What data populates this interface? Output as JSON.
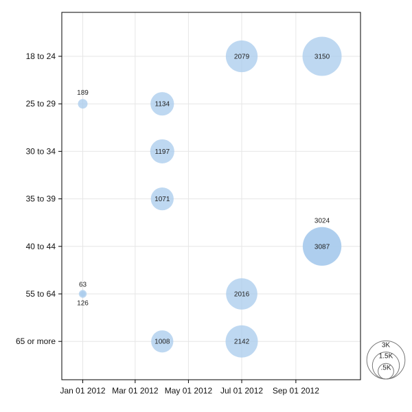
{
  "chart_data": {
    "type": "bubble",
    "title": "",
    "xlabel": "",
    "ylabel": "",
    "x_ticks": [
      "2012-01-01",
      "2012-03-01",
      "2012-05-01",
      "2012-07-01",
      "2012-09-01"
    ],
    "x_tick_labels": [
      "Jan 01 2012",
      "Mar 01 2012",
      "May 01 2012",
      "Jul 01 2012",
      "Sep 01 2012"
    ],
    "xlim": [
      "2011-12-08",
      "2012-11-14"
    ],
    "categories": [
      "18 to 24",
      "25 to 29",
      "30 to 34",
      "35 to 39",
      "40 to 44",
      "55 to 64",
      "65 or more"
    ],
    "grid": true,
    "legend": {
      "position": "bottom-right",
      "labels": [
        "3K",
        "1.5K",
        ".5K"
      ],
      "values": [
        3000,
        1500,
        500
      ]
    },
    "colors": {
      "bubble": "#a8cbec",
      "bubble_overlap": "#87b6e1",
      "grid": "#e6e6e6",
      "axis": "#000000"
    },
    "series": [
      {
        "points": [
          {
            "x": "2012-01-01",
            "category": "25 to 29",
            "value": 189
          },
          {
            "x": "2012-04-01",
            "category": "25 to 29",
            "value": 1134
          },
          {
            "x": "2012-04-01",
            "category": "30 to 34",
            "value": 1197
          },
          {
            "x": "2012-04-01",
            "category": "35 to 39",
            "value": 1071
          },
          {
            "x": "2012-04-01",
            "category": "65 or more",
            "value": 1008
          },
          {
            "x": "2012-07-01",
            "category": "18 to 24",
            "value": 2079
          },
          {
            "x": "2012-07-01",
            "category": "55 to 64",
            "value": 2016
          },
          {
            "x": "2012-07-01",
            "category": "65 or more",
            "value": 2142
          },
          {
            "x": "2012-10-01",
            "category": "18 to 24",
            "value": 3150
          },
          {
            "x": "2012-10-01",
            "category": "40 to 44",
            "value": 3087
          }
        ]
      },
      {
        "points": [
          {
            "x": "2012-01-01",
            "category": "55 to 64",
            "value": 126
          },
          {
            "x": "2012-10-01",
            "category": "40 to 44",
            "value": 3024
          }
        ]
      },
      {
        "points": [
          {
            "x": "2012-01-01",
            "category": "55 to 64",
            "value": 63
          }
        ]
      }
    ]
  }
}
